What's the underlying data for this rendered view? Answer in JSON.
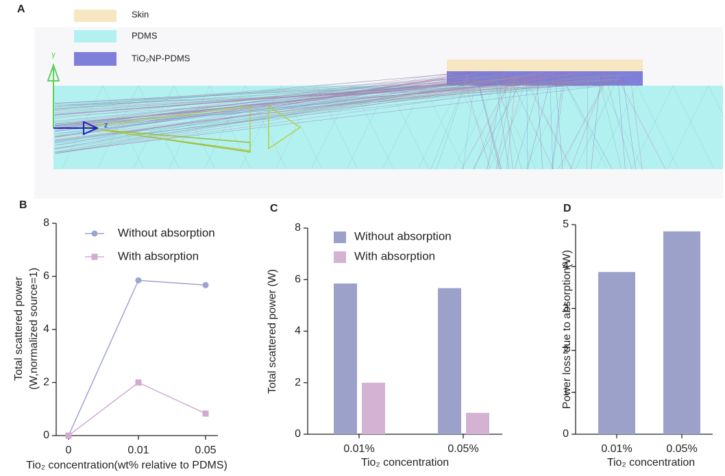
{
  "diagram": {
    "panel": "A",
    "legend": [
      "Skin",
      "PDMS",
      "TiO₂NP-PDMS"
    ],
    "axis_y": "y",
    "axis_z": "z"
  },
  "chart_data": [
    {
      "type": "line",
      "panel": "B",
      "categories": [
        "0",
        "0.01",
        "0.05"
      ],
      "series": [
        {
          "name": "Without absorption",
          "color": "#9ea3d0",
          "marker": "circle",
          "values": [
            0,
            5.85,
            5.67
          ]
        },
        {
          "name": "With absorption",
          "color": "#d3aad0",
          "marker": "square",
          "values": [
            0,
            2.0,
            0.83
          ]
        }
      ],
      "ylim": [
        0,
        8
      ],
      "yticks": [
        0,
        2,
        4,
        6,
        8
      ],
      "ylabel": [
        "Total scattered power",
        "(W,normalized source=1)"
      ],
      "xlabel": "Tio₂ concentration(wt% relative to PDMS)"
    },
    {
      "type": "bar",
      "panel": "C",
      "categories": [
        "0.01%",
        "0.05%"
      ],
      "series": [
        {
          "name": "Without absorption",
          "color": "#9ca1c9",
          "values": [
            5.85,
            5.67
          ]
        },
        {
          "name": "With absorption",
          "color": "#d4b2d3",
          "values": [
            2.0,
            0.83
          ]
        }
      ],
      "ylim": [
        0,
        8
      ],
      "yticks": [
        0,
        2,
        4,
        6,
        8
      ],
      "ylabel": [
        "Total scattered power (W)"
      ],
      "xlabel": "Tio₂ concentration"
    },
    {
      "type": "bar",
      "panel": "D",
      "categories": [
        "0.01%",
        "0.05%"
      ],
      "series": [
        {
          "color": "#9ca1c9",
          "values": [
            3.87,
            4.84
          ]
        }
      ],
      "ylim": [
        0,
        5
      ],
      "yticks": [
        0,
        1,
        2,
        3,
        4,
        5
      ],
      "ylabel": [
        "Power loss due to absorption(W)"
      ],
      "xlabel": "Tio₂ concentration"
    }
  ]
}
